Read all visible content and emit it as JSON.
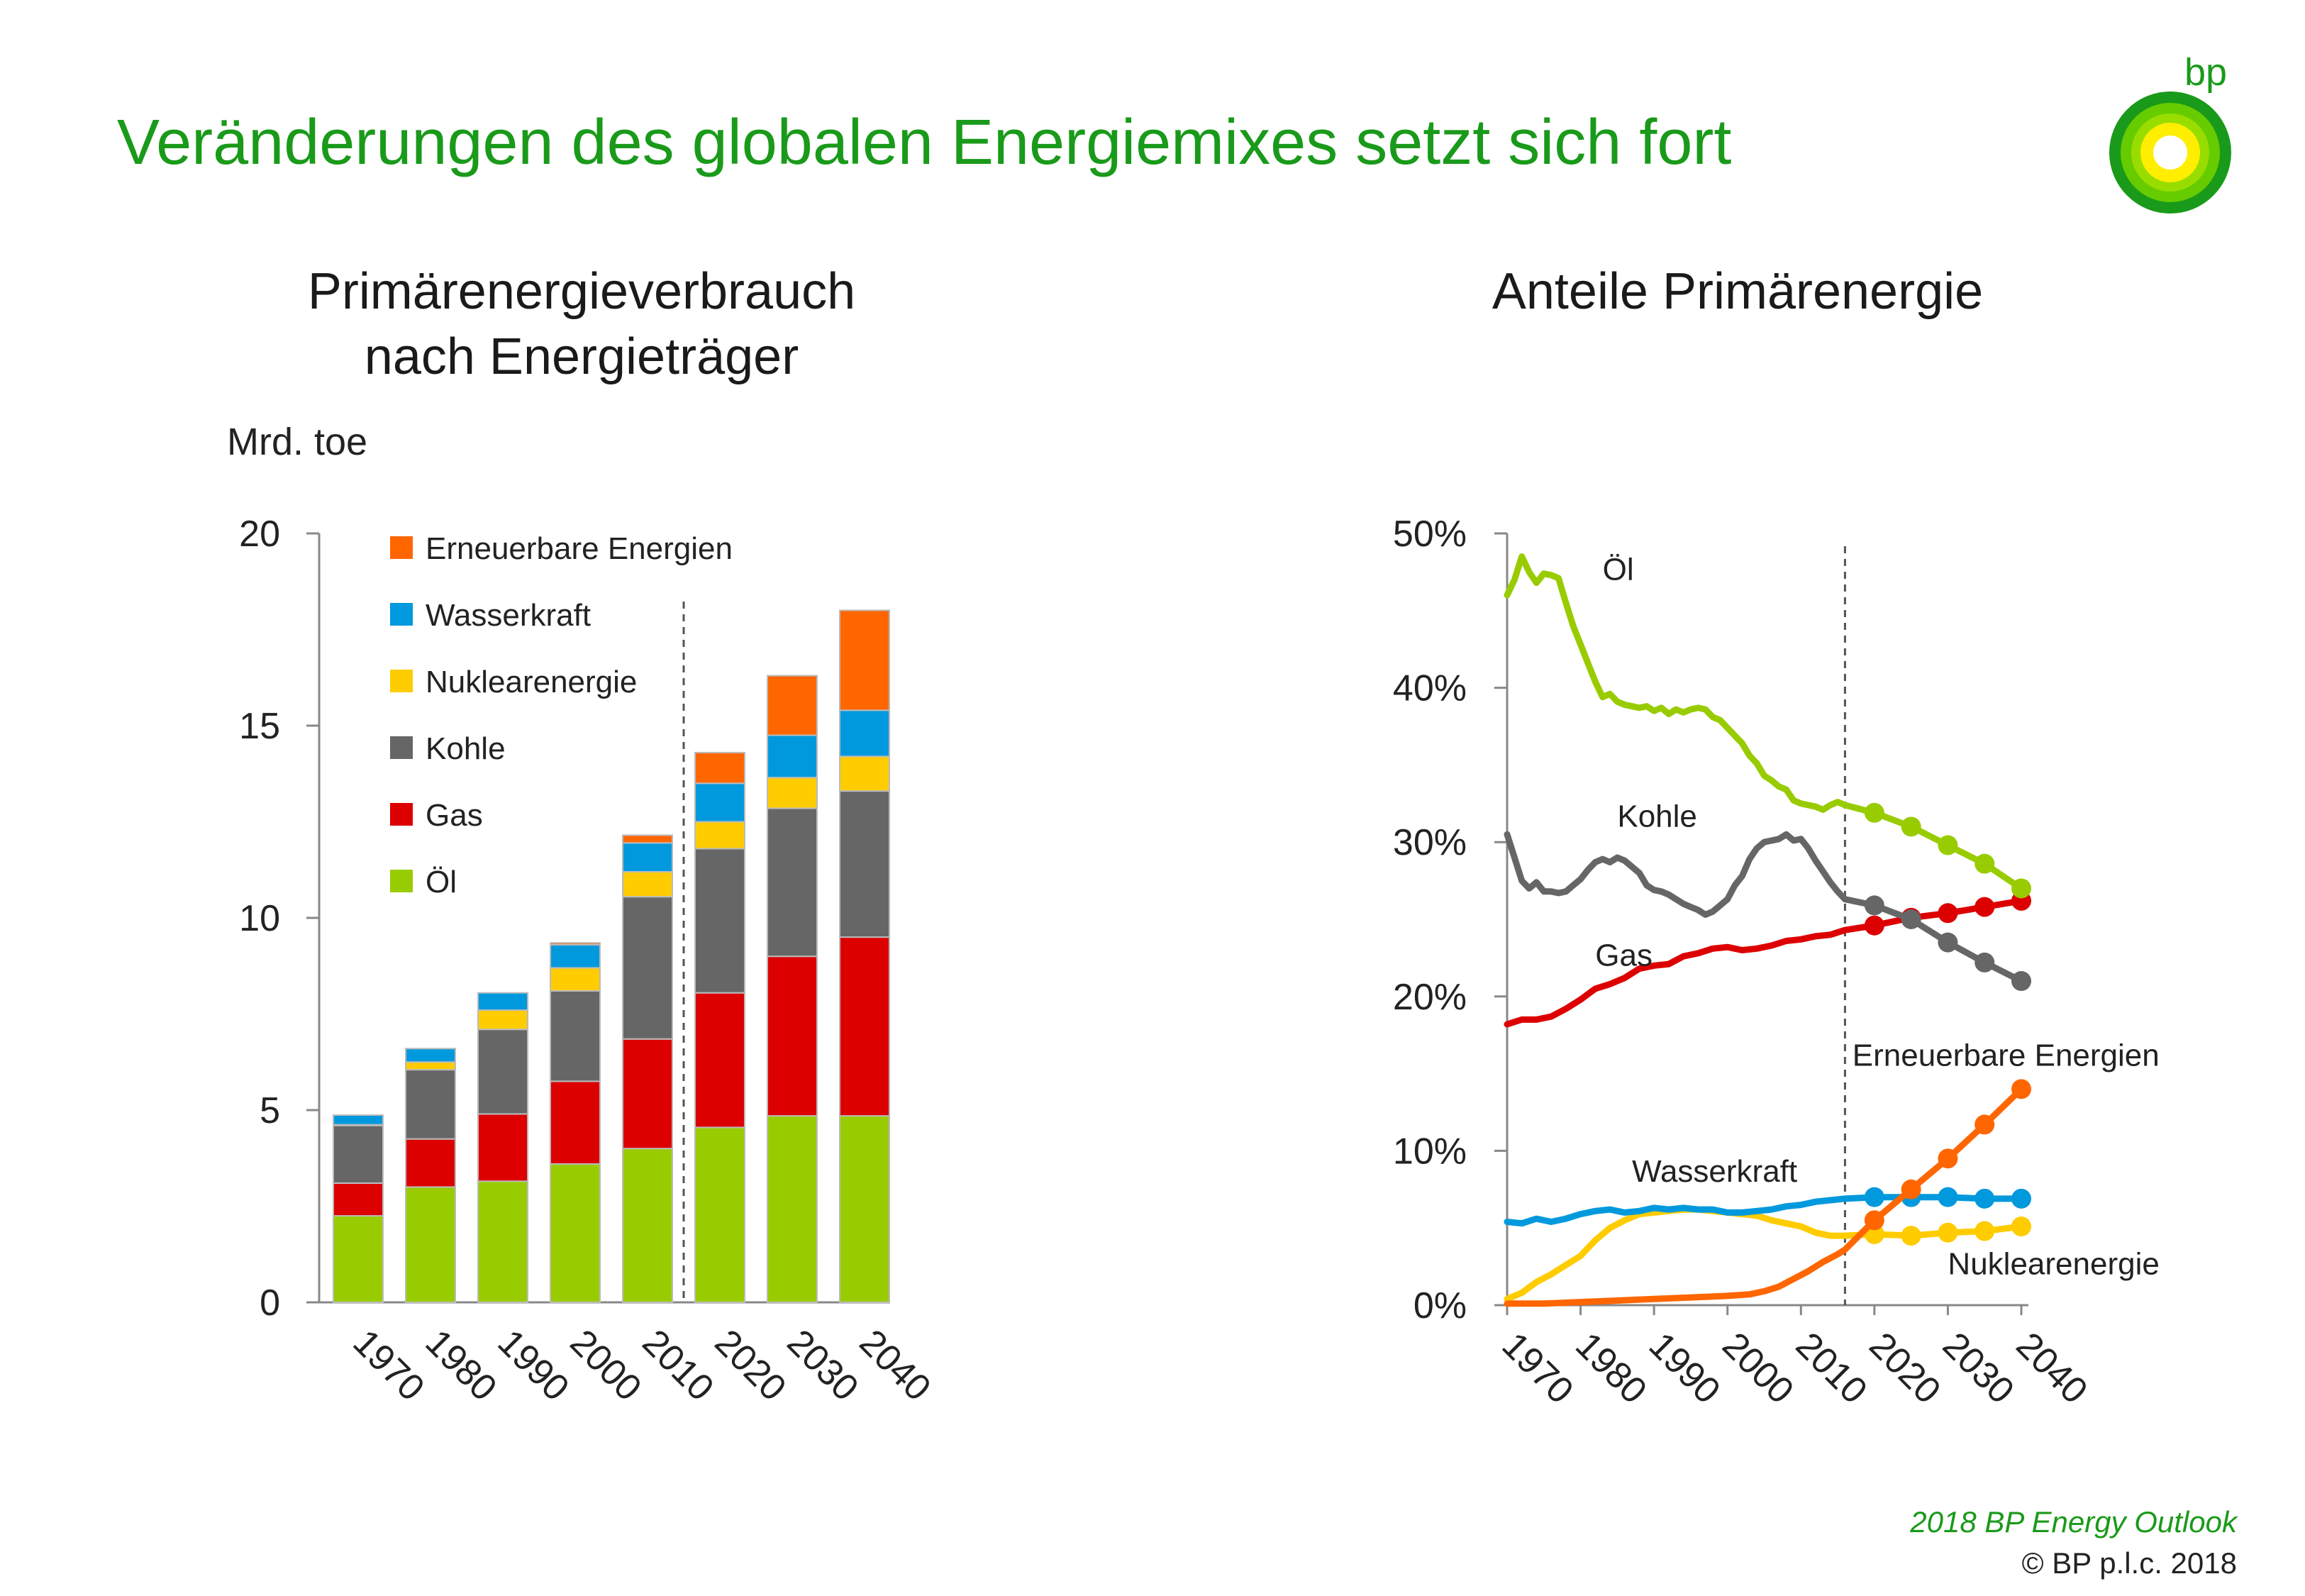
{
  "page": {
    "title": "Veränderungen des globalen Energiemixes setzt sich fort",
    "logo_text": "bp",
    "footer_outlook": "2018 BP Energy Outlook",
    "footer_copyright": "© BP p.l.c. 2018"
  },
  "colors": {
    "oel": "#99cc00",
    "gas": "#dd0000",
    "kohle": "#666666",
    "nuklear": "#ffcc00",
    "wasserkraft": "#0099dd",
    "erneuerbare": "#ff6600",
    "title_green": "#1a9a1a"
  },
  "chart_data": [
    {
      "type": "bar",
      "stacked": true,
      "title": "Primärenergieverbrauch nach Energieträger",
      "title_lines": [
        "Primärenergieverbrauch",
        "nach Energieträger"
      ],
      "ylabel": "Mrd. toe",
      "ylim": [
        0,
        20
      ],
      "yticks": [
        0,
        5,
        10,
        15,
        20
      ],
      "categories": [
        "1970",
        "1980",
        "1990",
        "2000",
        "2010",
        "2020",
        "2030",
        "2040"
      ],
      "projection_divider_between": [
        "2010",
        "2020"
      ],
      "legend_position": "top-left",
      "legend_order": [
        "Erneuerbare Energien",
        "Wasserkraft",
        "Nuklearenergie",
        "Kohle",
        "Gas",
        "Öl"
      ],
      "series": [
        {
          "name": "Öl",
          "color_key": "oel",
          "values": [
            2.25,
            3.0,
            3.15,
            3.6,
            4.0,
            4.55,
            4.85,
            4.85
          ]
        },
        {
          "name": "Gas",
          "color_key": "gas",
          "values": [
            0.85,
            1.25,
            1.75,
            2.15,
            2.85,
            3.5,
            4.15,
            4.65
          ]
        },
        {
          "name": "Kohle",
          "color_key": "kohle",
          "values": [
            1.5,
            1.8,
            2.2,
            2.35,
            3.7,
            3.75,
            3.85,
            3.8
          ]
        },
        {
          "name": "Nuklearenergie",
          "color_key": "nuklear",
          "values": [
            0.02,
            0.2,
            0.5,
            0.6,
            0.65,
            0.7,
            0.8,
            0.9
          ]
        },
        {
          "name": "Wasserkraft",
          "color_key": "wasserkraft",
          "values": [
            0.25,
            0.35,
            0.45,
            0.6,
            0.75,
            1.0,
            1.1,
            1.2
          ]
        },
        {
          "name": "Erneuerbare Energien",
          "color_key": "erneuerbare",
          "values": [
            0.0,
            0.0,
            0.0,
            0.05,
            0.2,
            0.8,
            1.55,
            2.6
          ]
        }
      ]
    },
    {
      "type": "line",
      "title": "Anteile Primärenergie",
      "ylim": [
        0,
        50
      ],
      "yticks": [
        0,
        10,
        20,
        30,
        40,
        50
      ],
      "ytick_suffix": "%",
      "xlim": [
        1970,
        2040
      ],
      "xticks": [
        "1970",
        "1980",
        "1990",
        "2000",
        "2010",
        "2020",
        "2030",
        "2040"
      ],
      "projection_divider_x": 2016,
      "projection_markers_x": [
        2020,
        2025,
        2030,
        2035,
        2040
      ],
      "series": [
        {
          "name": "Öl",
          "color_key": "oel",
          "x": [
            1970,
            1971,
            1972,
            1973,
            1974,
            1975,
            1976,
            1977,
            1978,
            1979,
            1980,
            1981,
            1982,
            1983,
            1984,
            1985,
            1986,
            1987,
            1988,
            1989,
            1990,
            1991,
            1992,
            1993,
            1994,
            1995,
            1996,
            1997,
            1998,
            1999,
            2000,
            2001,
            2002,
            2003,
            2004,
            2005,
            2006,
            2007,
            2008,
            2009,
            2010,
            2011,
            2012,
            2013,
            2014,
            2015,
            2016,
            2020,
            2025,
            2030,
            2035,
            2040
          ],
          "y": [
            46,
            47,
            48.5,
            47.5,
            46.8,
            47.4,
            47.3,
            47.1,
            45.5,
            44,
            42.8,
            41.6,
            40.4,
            39.4,
            39.6,
            39.1,
            38.9,
            38.8,
            38.7,
            38.8,
            38.5,
            38.7,
            38.3,
            38.6,
            38.4,
            38.6,
            38.7,
            38.6,
            38.1,
            37.9,
            37.4,
            36.9,
            36.4,
            35.6,
            35.1,
            34.3,
            34.0,
            33.6,
            33.4,
            32.7,
            32.5,
            32.4,
            32.3,
            32.1,
            32.4,
            32.6,
            32.4,
            31.9,
            31.0,
            29.8,
            28.6,
            27.0
          ]
        },
        {
          "name": "Kohle",
          "color_key": "kohle",
          "x": [
            1970,
            1971,
            1972,
            1973,
            1974,
            1975,
            1976,
            1977,
            1978,
            1979,
            1980,
            1981,
            1982,
            1983,
            1984,
            1985,
            1986,
            1987,
            1988,
            1989,
            1990,
            1991,
            1992,
            1993,
            1994,
            1995,
            1996,
            1997,
            1998,
            1999,
            2000,
            2001,
            2002,
            2003,
            2004,
            2005,
            2006,
            2007,
            2008,
            2009,
            2010,
            2011,
            2012,
            2013,
            2014,
            2015,
            2016,
            2020,
            2025,
            2030,
            2035,
            2040
          ],
          "y": [
            30.5,
            29,
            27.5,
            27.0,
            27.4,
            26.8,
            26.8,
            26.7,
            26.8,
            27.2,
            27.6,
            28.2,
            28.7,
            28.9,
            28.7,
            29.0,
            28.8,
            28.4,
            28.0,
            27.2,
            26.9,
            26.8,
            26.6,
            26.3,
            26.0,
            25.8,
            25.6,
            25.3,
            25.5,
            25.9,
            26.3,
            27.2,
            27.8,
            28.9,
            29.6,
            30.0,
            30.1,
            30.2,
            30.5,
            30.1,
            30.2,
            29.6,
            28.8,
            28.1,
            27.4,
            26.8,
            26.3,
            25.9,
            25.0,
            23.5,
            22.2,
            21.0
          ]
        },
        {
          "name": "Gas",
          "color_key": "gas",
          "x": [
            1970,
            1972,
            1974,
            1976,
            1978,
            1980,
            1982,
            1984,
            1986,
            1988,
            1990,
            1992,
            1994,
            1996,
            1998,
            2000,
            2002,
            2004,
            2006,
            2008,
            2010,
            2012,
            2014,
            2016,
            2020,
            2025,
            2030,
            2035,
            2040
          ],
          "y": [
            18.2,
            18.5,
            18.5,
            18.7,
            19.2,
            19.8,
            20.5,
            20.8,
            21.2,
            21.8,
            22.0,
            22.1,
            22.6,
            22.8,
            23.1,
            23.2,
            23.0,
            23.1,
            23.3,
            23.6,
            23.7,
            23.9,
            24.0,
            24.3,
            24.6,
            25.1,
            25.4,
            25.8,
            26.2
          ]
        },
        {
          "name": "Wasserkraft",
          "color_key": "wasserkraft",
          "x": [
            1970,
            1972,
            1974,
            1976,
            1978,
            1980,
            1982,
            1984,
            1986,
            1988,
            1990,
            1992,
            1994,
            1996,
            1998,
            2000,
            2002,
            2004,
            2006,
            2008,
            2010,
            2012,
            2014,
            2016,
            2020,
            2025,
            2030,
            2035,
            2040
          ],
          "y": [
            5.4,
            5.3,
            5.6,
            5.4,
            5.6,
            5.9,
            6.1,
            6.2,
            6.0,
            6.1,
            6.3,
            6.2,
            6.3,
            6.2,
            6.2,
            6.0,
            6.0,
            6.1,
            6.2,
            6.4,
            6.5,
            6.7,
            6.8,
            6.9,
            7.0,
            7.0,
            7.0,
            6.9,
            6.9
          ]
        },
        {
          "name": "Nuklearenergie",
          "color_key": "nuklear",
          "x": [
            1970,
            1972,
            1974,
            1976,
            1978,
            1980,
            1982,
            1984,
            1986,
            1988,
            1990,
            1992,
            1994,
            1996,
            1998,
            2000,
            2002,
            2004,
            2006,
            2008,
            2010,
            2012,
            2014,
            2016,
            2020,
            2025,
            2030,
            2035,
            2040
          ],
          "y": [
            0.4,
            0.8,
            1.5,
            2.0,
            2.6,
            3.2,
            4.2,
            5.0,
            5.5,
            5.9,
            6.0,
            6.1,
            6.2,
            6.2,
            6.1,
            6.0,
            5.9,
            5.8,
            5.5,
            5.3,
            5.1,
            4.7,
            4.5,
            4.5,
            4.6,
            4.5,
            4.7,
            4.8,
            5.1
          ]
        },
        {
          "name": "Erneuerbare Energien",
          "color_key": "erneuerbare",
          "x": [
            1970,
            1975,
            1980,
            1985,
            1990,
            1995,
            2000,
            2003,
            2005,
            2007,
            2009,
            2011,
            2013,
            2015,
            2016,
            2020,
            2025,
            2030,
            2035,
            2040
          ],
          "y": [
            0.1,
            0.1,
            0.2,
            0.3,
            0.4,
            0.5,
            0.6,
            0.7,
            0.9,
            1.2,
            1.7,
            2.2,
            2.8,
            3.3,
            3.6,
            5.5,
            7.5,
            9.5,
            11.7,
            14.0
          ]
        }
      ],
      "labels": [
        {
          "text": "Öl",
          "x": 1983,
          "y": 47
        },
        {
          "text": "Kohle",
          "x": 1985,
          "y": 31
        },
        {
          "text": "Gas",
          "x": 1982,
          "y": 22
        },
        {
          "text": "Erneuerbare Energien",
          "x": 2017,
          "y": 15.5
        },
        {
          "text": "Wasserkraft",
          "x": 1987,
          "y": 8
        },
        {
          "text": "Nuklearenergie",
          "x": 2030,
          "y": 2
        }
      ]
    }
  ]
}
